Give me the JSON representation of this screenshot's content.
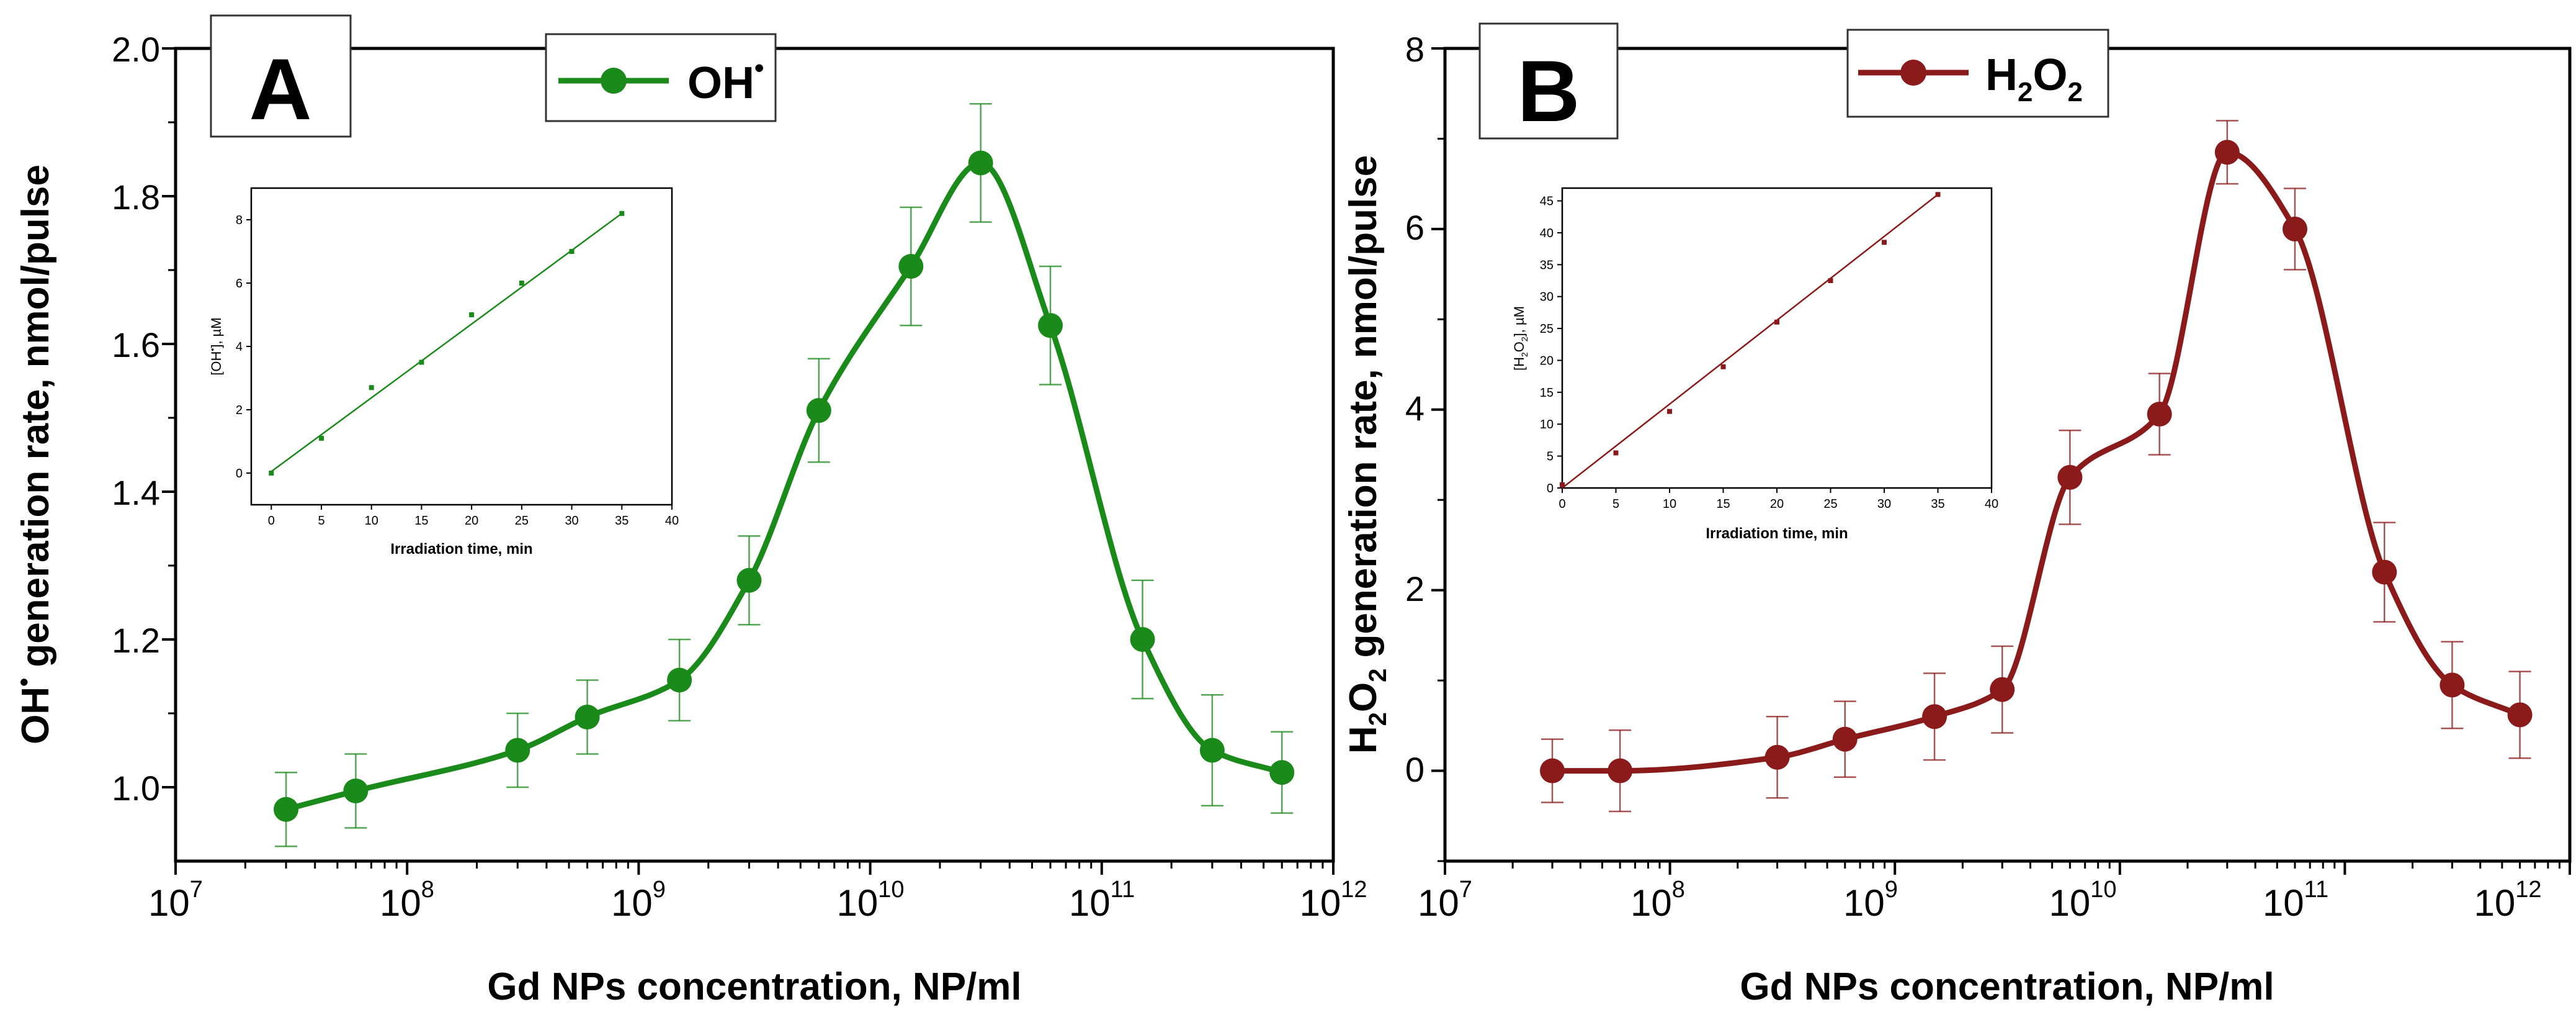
{
  "chart_data": [
    {
      "type": "line",
      "panel_label": "A",
      "legend_label": "OH",
      "legend_sup": "•",
      "color": "#1a8a1a",
      "xlabel": "Gd NPs concentration, NP/ml",
      "ylabel_main": "OH",
      "ylabel_sup": "•",
      "ylabel_rest": " generation rate, nmol/pulse",
      "xscale": "log",
      "xlim_exp": [
        7,
        12
      ],
      "x_ticks": [
        {
          "base": "10",
          "exp": "7"
        },
        {
          "base": "10",
          "exp": "8"
        },
        {
          "base": "10",
          "exp": "9"
        },
        {
          "base": "10",
          "exp": "10"
        },
        {
          "base": "10",
          "exp": "11"
        },
        {
          "base": "10",
          "exp": "12"
        }
      ],
      "ylim": [
        0.9,
        2.0
      ],
      "y_ticks": [
        "1.0",
        "1.2",
        "1.4",
        "1.6",
        "1.8",
        "2.0"
      ],
      "series": [
        {
          "name": "OH•",
          "x": [
            30000000.0,
            60000000.0,
            300000000.0,
            600000000.0,
            1500000000.0,
            3000000000.0,
            6000000000.0,
            15000000000.0,
            30000000000.0,
            60000000000.0,
            150000000000.0,
            300000000000.0,
            600000000000.0
          ],
          "y": [
            0.97,
            0.995,
            1.05,
            1.095,
            1.145,
            1.28,
            1.51,
            1.705,
            1.845,
            1.625,
            1.2,
            1.05,
            1.02
          ],
          "err": [
            0.05,
            0.05,
            0.05,
            0.05,
            0.055,
            0.06,
            0.07,
            0.08,
            0.08,
            0.08,
            0.08,
            0.075,
            0.055
          ]
        }
      ],
      "inset": {
        "xlabel": "Irradiation time, min",
        "ylabel": "[OH], µM",
        "xlim": [
          -2,
          40
        ],
        "ylim": [
          -1,
          9
        ],
        "x_ticks": [
          "0",
          "5",
          "10",
          "15",
          "20",
          "25",
          "30",
          "35",
          "40"
        ],
        "y_ticks": [
          "0",
          "2",
          "4",
          "6",
          "8"
        ],
        "x": [
          0,
          5,
          10,
          15,
          20,
          25,
          30,
          35
        ],
        "y": [
          0,
          1.1,
          2.7,
          3.5,
          5.0,
          6.0,
          7.0,
          8.2
        ],
        "fit": [
          [
            0,
            0.05
          ],
          [
            35,
            8.2
          ]
        ]
      }
    },
    {
      "type": "line",
      "panel_label": "B",
      "legend_label": "H2O2",
      "color": "#8b1a1a",
      "xlabel": "Gd NPs concentration, NP/ml",
      "ylabel_main": "H2O2 generation rate, nmol/pulse",
      "xscale": "log",
      "xlim_exp": [
        7,
        12
      ],
      "x_ticks": [
        {
          "base": "10",
          "exp": "7"
        },
        {
          "base": "10",
          "exp": "8"
        },
        {
          "base": "10",
          "exp": "9"
        },
        {
          "base": "10",
          "exp": "10"
        },
        {
          "base": "10",
          "exp": "11"
        },
        {
          "base": "10",
          "exp": "12"
        }
      ],
      "ylim": [
        -1,
        8
      ],
      "y_ticks": [
        "0",
        "2",
        "4",
        "6",
        "8"
      ],
      "series": [
        {
          "name": "H2O2",
          "x": [
            30000000.0,
            60000000.0,
            300000000.0,
            600000000.0,
            1500000000.0,
            3000000000.0,
            6000000000.0,
            15000000000.0,
            30000000000.0,
            60000000000.0,
            150000000000.0,
            300000000000.0,
            600000000000.0
          ],
          "y": [
            0.0,
            0.0,
            0.15,
            0.35,
            0.6,
            0.9,
            3.25,
            3.95,
            6.85,
            6.0,
            2.2,
            0.95,
            0.62
          ],
          "err": [
            0.35,
            0.45,
            0.45,
            0.42,
            0.48,
            0.48,
            0.52,
            0.45,
            0.35,
            0.45,
            0.55,
            0.48,
            0.48
          ]
        }
      ],
      "inset": {
        "xlabel": "Irradiation time, min",
        "ylabel": "[H2O2], µM",
        "xlim": [
          0,
          40
        ],
        "ylim": [
          0,
          47
        ],
        "x_ticks": [
          "0",
          "5",
          "10",
          "15",
          "20",
          "25",
          "30",
          "35",
          "40"
        ],
        "y_ticks": [
          "0",
          "5",
          "10",
          "15",
          "20",
          "25",
          "30",
          "35",
          "40",
          "45"
        ],
        "x": [
          0,
          5,
          10,
          15,
          20,
          25,
          30,
          35
        ],
        "y": [
          0.5,
          5.5,
          12,
          19,
          26,
          32.5,
          38.5,
          46
        ],
        "fit": [
          [
            0,
            0
          ],
          [
            35,
            46
          ]
        ]
      }
    }
  ]
}
